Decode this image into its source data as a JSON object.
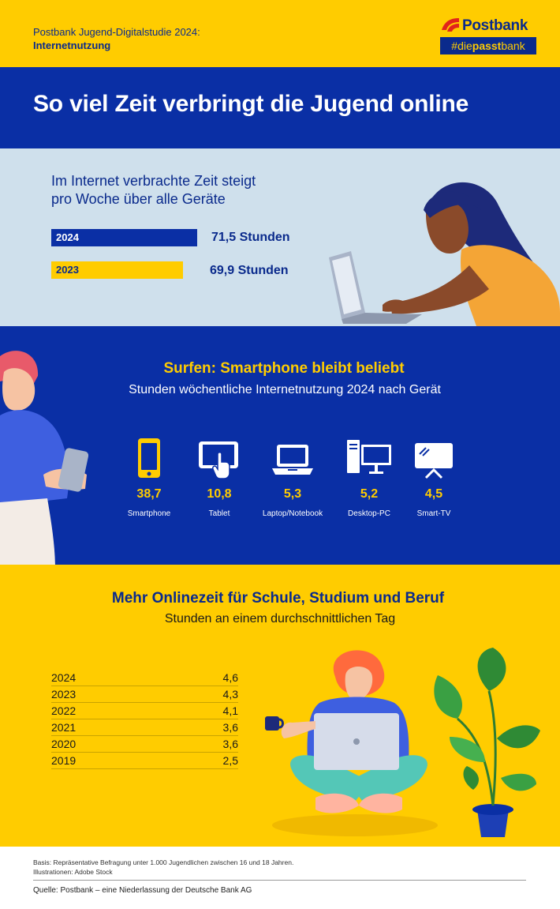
{
  "header": {
    "study_line1": "Postbank Jugend-Digitalstudie 2024:",
    "study_line2": "Internetnutzung",
    "brand": "Postbank",
    "tag_pre": "#die",
    "tag_bold": "passt",
    "tag_post": "bank",
    "brand_colors": {
      "yellow": "#ffcc00",
      "blue": "#0a2fa5",
      "red": "#e2241b"
    }
  },
  "title": "So viel Zeit verbringt die Jugend online",
  "section_weekly": {
    "subtitle_line1": "Im Internet verbrachte Zeit steigt",
    "subtitle_line2": "pro Woche über alle Geräte"
  },
  "section_devices": {
    "title": "Surfen: Smartphone bleibt beliebt",
    "subtitle": "Stunden wöchentliche Internetnutzung 2024 nach Gerät"
  },
  "section_daily": {
    "title": "Mehr Onlinezeit für Schule, Studium und Beruf",
    "subtitle": "Stunden an einem durchschnittlichen Tag"
  },
  "footer": {
    "basis": "Basis: Repräsentative Befragung unter 1.000 Jugendlichen zwischen 16 und 18 Jahren.",
    "illustrations": "Illustrationen: Adobe Stock",
    "source": "Quelle: Postbank – eine Niederlassung der Deutsche Bank AG"
  },
  "chart_data": [
    {
      "type": "bar",
      "orientation": "horizontal",
      "title": "Im Internet verbrachte Zeit steigt pro Woche über alle Geräte",
      "categories": [
        "2024",
        "2023"
      ],
      "values": [
        71.5,
        69.9
      ],
      "value_labels": [
        "71,5  Stunden",
        "69,9 Stunden"
      ],
      "colors": [
        "#0a2fa5",
        "#ffcc00"
      ]
    },
    {
      "type": "table",
      "title": "Surfen: Smartphone bleibt beliebt",
      "subtitle": "Stunden wöchentliche Internetnutzung 2024 nach Gerät",
      "categories": [
        "Smartphone",
        "Tablet",
        "Laptop/Notebook",
        "Desktop-PC",
        "Smart-TV"
      ],
      "icons": [
        "smartphone-icon",
        "tablet-icon",
        "laptop-icon",
        "desktop-pc-icon",
        "smart-tv-icon"
      ],
      "values": [
        38.7,
        10.8,
        5.3,
        5.2,
        4.5
      ],
      "value_labels": [
        "38,7",
        "10,8",
        "5,3",
        "5,2",
        "4,5"
      ]
    },
    {
      "type": "table",
      "title": "Mehr Onlinezeit für Schule, Studium und Beruf",
      "subtitle": "Stunden an einem durchschnittlichen Tag",
      "categories": [
        "2024",
        "2023",
        "2022",
        "2021",
        "2020",
        "2019"
      ],
      "values": [
        4.6,
        4.3,
        4.1,
        3.6,
        3.6,
        2.5
      ],
      "value_labels": [
        "4,6",
        "4,3",
        "4,1",
        "3,6",
        "3,6",
        "2,5"
      ]
    }
  ]
}
